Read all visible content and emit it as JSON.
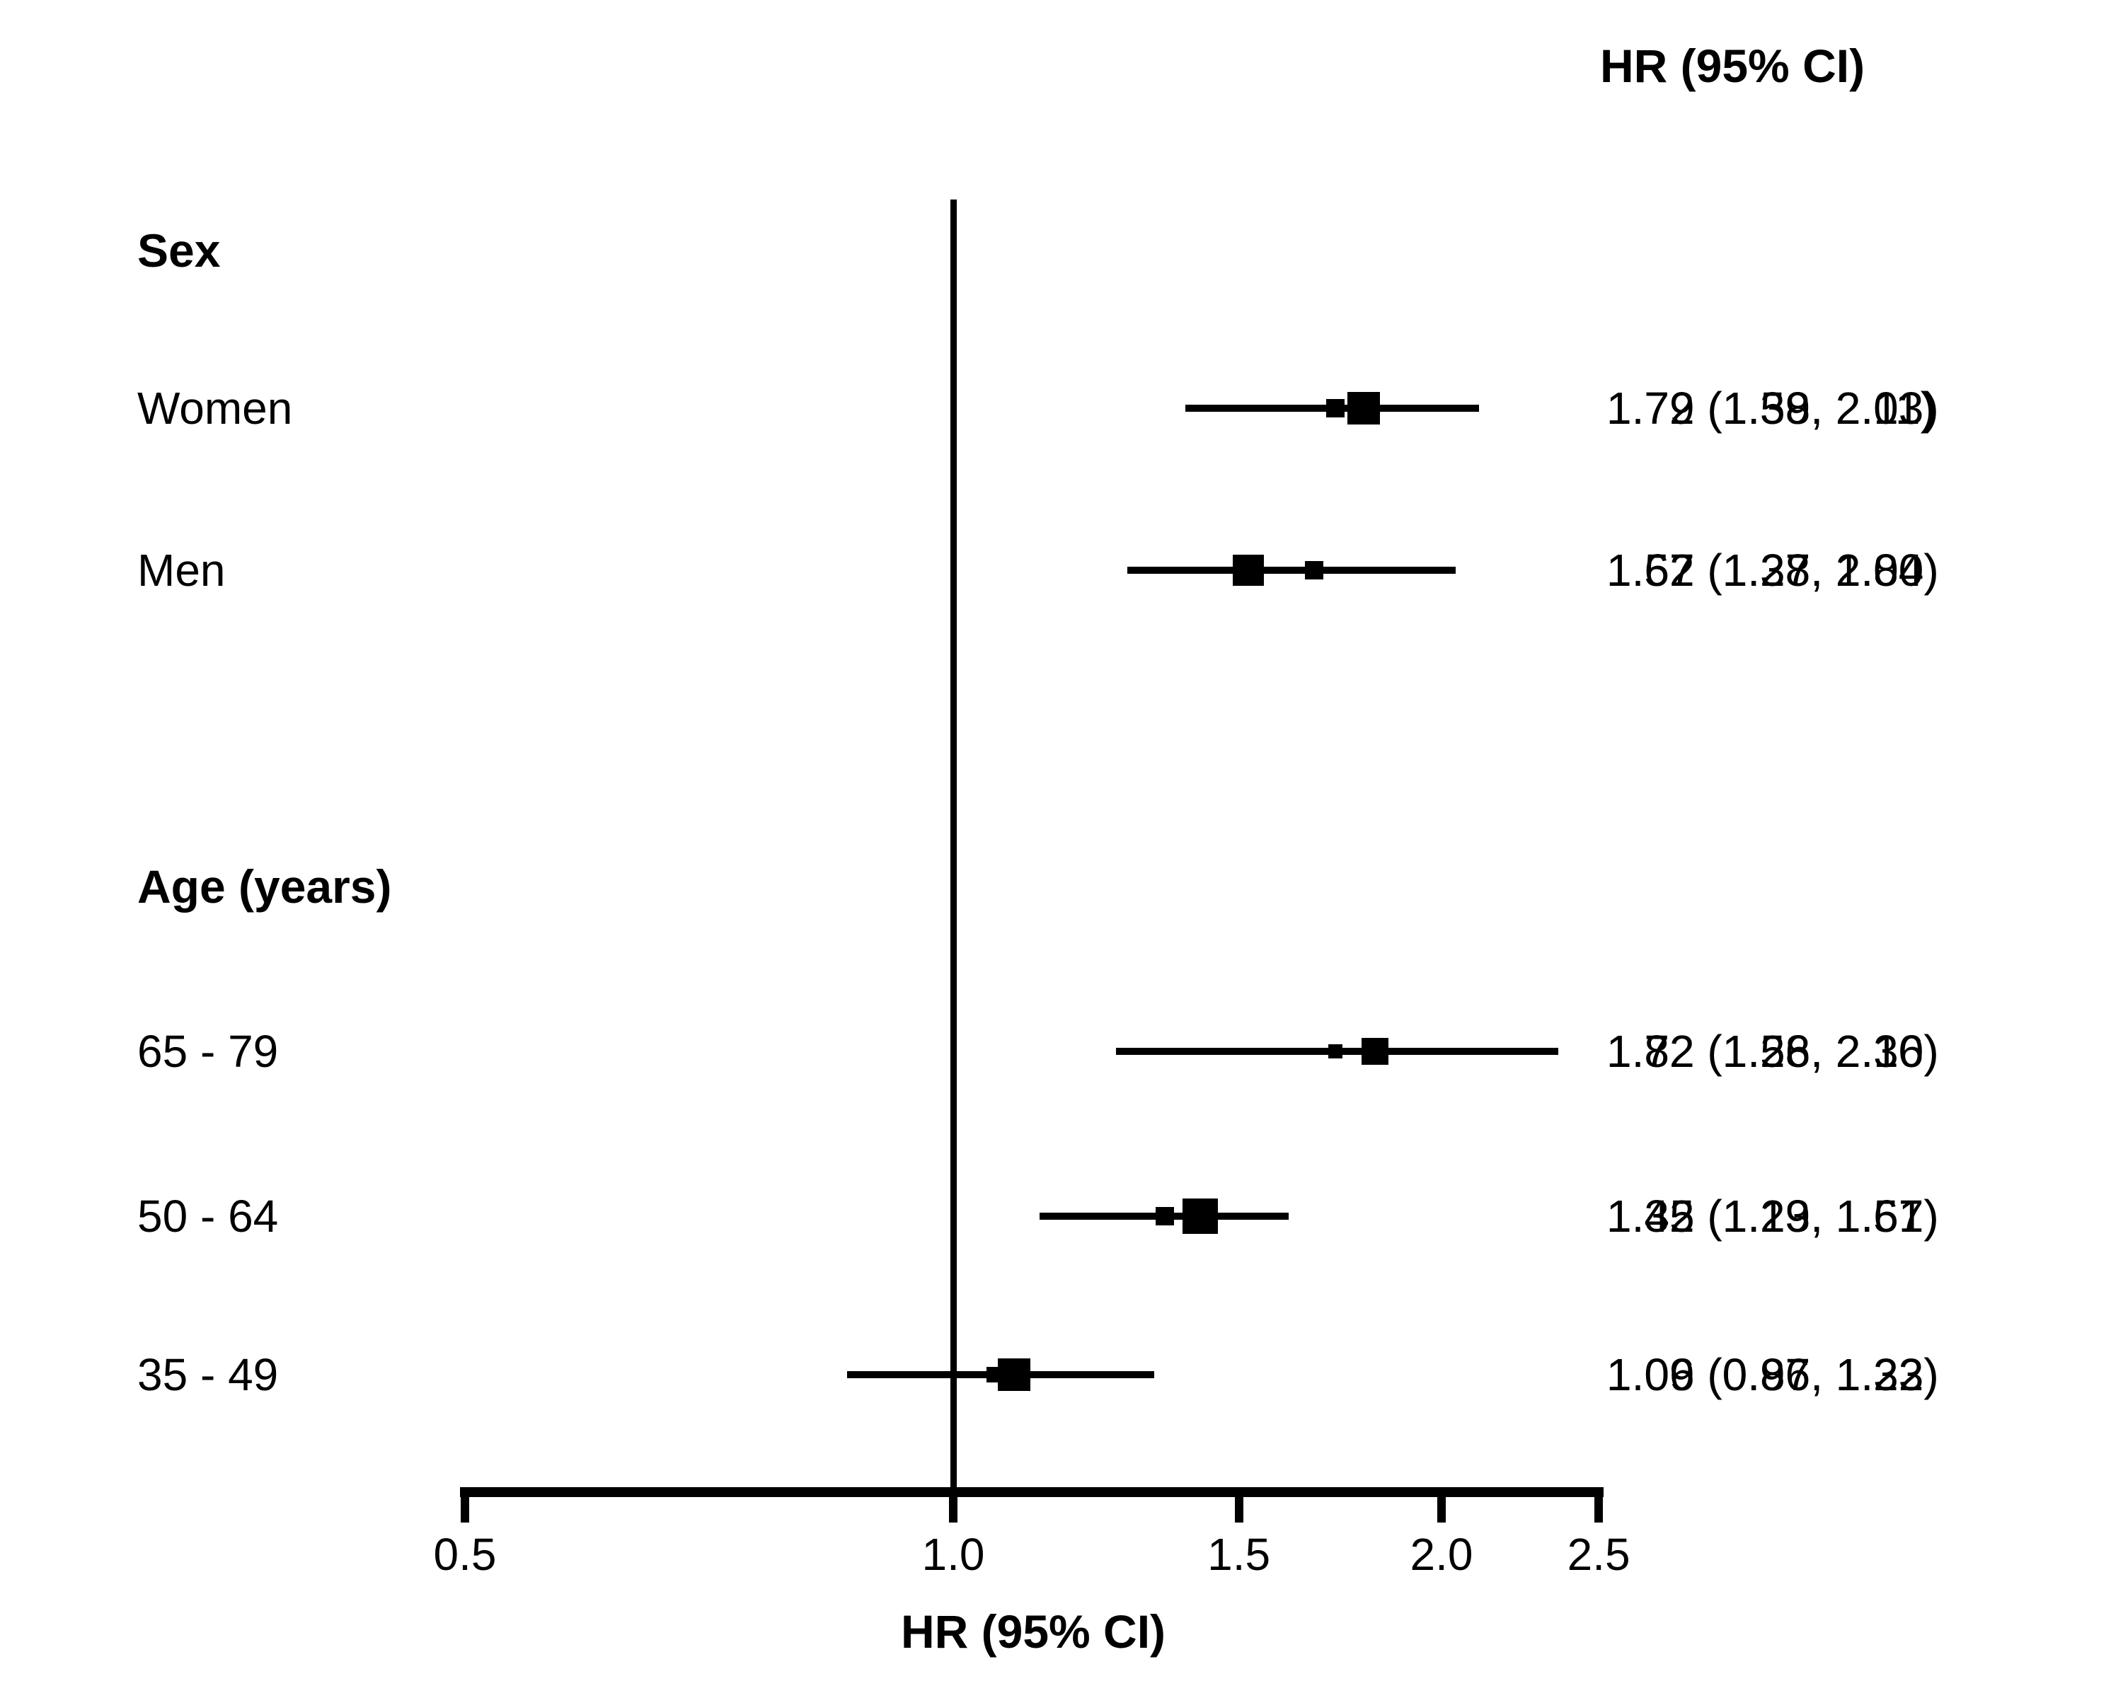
{
  "right_column_header": "HR (95% CI)",
  "x_axis_title": "HR (95% CI)",
  "chart_data": {
    "type": "forest",
    "x_scale": "log10",
    "x_range": [
      0.5,
      2.5
    ],
    "x_ticks": [
      {
        "value": 0.5,
        "label": "0.5"
      },
      {
        "value": 1.0,
        "label": "1.0"
      },
      {
        "value": 1.5,
        "label": "1.5"
      },
      {
        "value": 2.0,
        "label": "2.0"
      },
      {
        "value": 2.5,
        "label": "2.5"
      }
    ],
    "reference_line": 1.0,
    "legend_position": "none",
    "grid": false,
    "rows": [
      {
        "kind": "group",
        "label": "Sex"
      },
      {
        "kind": "item",
        "label": "Women",
        "estimates": [
          {
            "hr": 1.79,
            "lo": 1.58,
            "hi": 2.03,
            "text": "1.79 (1.58, 2.03)",
            "box": 46
          },
          {
            "hr": 1.72,
            "lo": 1.39,
            "hi": 2.11,
            "text": "1.72 (1.39, 2.11)",
            "box": 26
          }
        ]
      },
      {
        "kind": "item",
        "label": "Men",
        "estimates": [
          {
            "hr": 1.52,
            "lo": 1.28,
            "hi": 1.8,
            "text": "1.52 (1.28, 1.80)",
            "box": 44
          },
          {
            "hr": 1.67,
            "lo": 1.37,
            "hi": 2.04,
            "text": "1.67 (1.37, 2.04)",
            "box": 26
          }
        ]
      },
      {
        "kind": "group",
        "label": "Age (years)"
      },
      {
        "kind": "item",
        "label": "65 - 79",
        "estimates": [
          {
            "hr": 1.82,
            "lo": 1.58,
            "hi": 2.1,
            "text": "1.82 (1.58, 2.10)",
            "box": 38
          },
          {
            "hr": 1.72,
            "lo": 1.26,
            "hi": 2.36,
            "text": "1.72 (1.26, 2.36)",
            "box": 20
          }
        ]
      },
      {
        "kind": "item",
        "label": "50 - 64",
        "estimates": [
          {
            "hr": 1.42,
            "lo": 1.29,
            "hi": 1.57,
            "text": "1.42 (1.29, 1.57)",
            "box": 50
          },
          {
            "hr": 1.35,
            "lo": 1.13,
            "hi": 1.61,
            "text": "1.35 (1.13, 1.61)",
            "box": 26
          }
        ]
      },
      {
        "kind": "item",
        "label": "35 - 49",
        "estimates": [
          {
            "hr": 1.09,
            "lo": 0.97,
            "hi": 1.22,
            "text": "1.09 (0.97, 1.22)",
            "box": 46
          },
          {
            "hr": 1.06,
            "lo": 0.86,
            "hi": 1.33,
            "text": "1.06 (0.86, 1.33)",
            "box": 22
          }
        ]
      }
    ]
  }
}
